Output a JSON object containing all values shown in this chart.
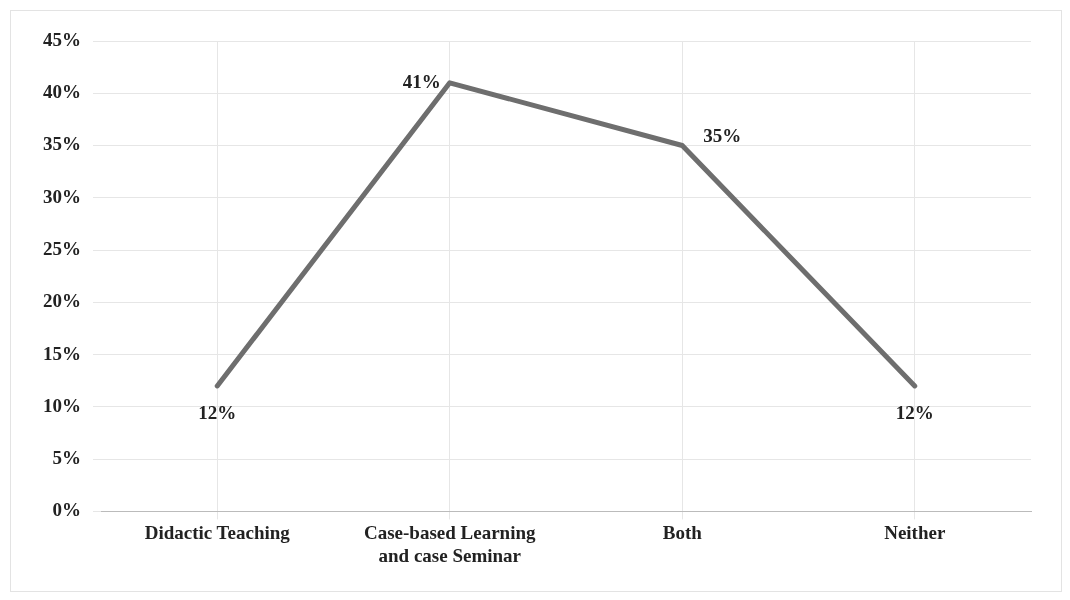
{
  "chart_data": {
    "type": "line",
    "categories": [
      "Didactic Teaching",
      "Case-based Learning and case Seminar",
      "Both",
      "Neither"
    ],
    "series": [
      {
        "color": "#6e6e6e",
        "values": [
          12,
          41,
          35,
          12
        ],
        "value_labels": [
          "12%",
          "41%",
          "35%",
          "12%"
        ]
      }
    ],
    "ylim": [
      0,
      45
    ],
    "yticks": [
      {
        "value": 0,
        "label": "0%"
      },
      {
        "value": 5,
        "label": "5%"
      },
      {
        "value": 10,
        "label": "10%"
      },
      {
        "value": 15,
        "label": "15%"
      },
      {
        "value": 20,
        "label": "20%"
      },
      {
        "value": 25,
        "label": "25%"
      },
      {
        "value": 30,
        "label": "30%"
      },
      {
        "value": 35,
        "label": "35%"
      },
      {
        "value": 40,
        "label": "40%"
      },
      {
        "value": 45,
        "label": "45%"
      }
    ],
    "grid": true,
    "legend": false,
    "marker": "none",
    "line_style": "solid"
  }
}
